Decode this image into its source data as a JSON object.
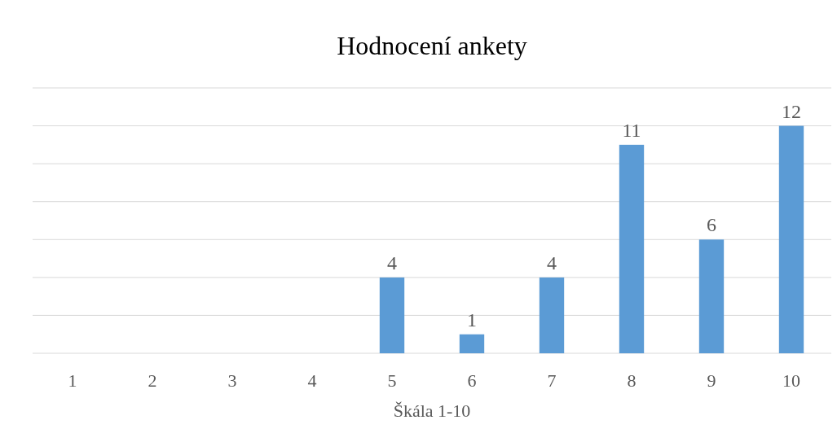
{
  "chart_data": {
    "type": "bar",
    "title": "Hodnocení ankety",
    "xlabel": "Škála 1-10",
    "categories": [
      "1",
      "2",
      "3",
      "4",
      "5",
      "6",
      "7",
      "8",
      "9",
      "10"
    ],
    "values": [
      0,
      0,
      0,
      0,
      4,
      1,
      4,
      11,
      6,
      12
    ],
    "value_labels": [
      null,
      null,
      null,
      null,
      "4",
      "1",
      "4",
      "11",
      "6",
      "12"
    ],
    "color": "#5b9bd5",
    "ylim": [
      0,
      14
    ],
    "yticks": [
      {
        "value": 0,
        "label": null
      },
      {
        "value": 2,
        "label": null
      },
      {
        "value": 4,
        "label": null
      },
      {
        "value": 6,
        "label": null
      },
      {
        "value": 8,
        "label": null
      },
      {
        "value": 10,
        "label": null
      },
      {
        "value": 12,
        "label": null
      },
      {
        "value": 14,
        "label": null
      }
    ],
    "tick_labels": "x",
    "grid": "y"
  }
}
